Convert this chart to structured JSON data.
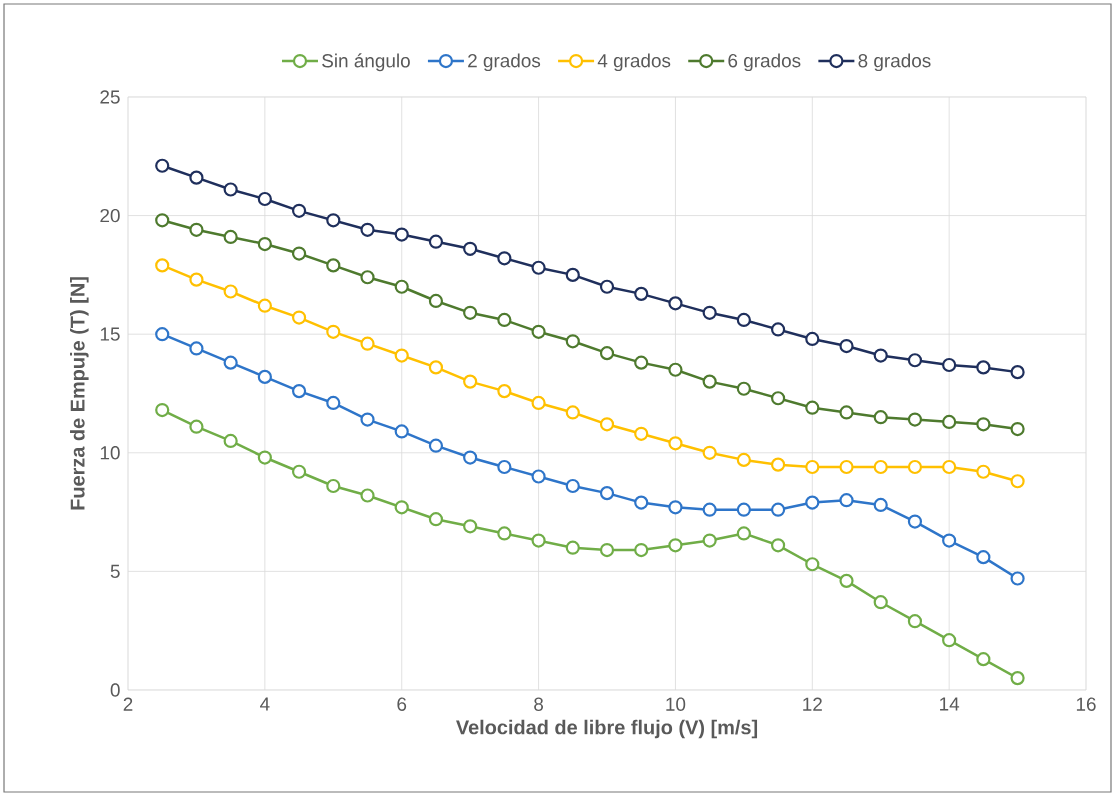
{
  "chart_data": {
    "type": "line",
    "xlabel": "Velocidad de libre flujo (V) [m/s]",
    "ylabel": "Fuerza de Empuje (T)  [N]",
    "x": [
      2.5,
      3,
      3.5,
      4,
      4.5,
      5,
      5.5,
      6,
      6.5,
      7,
      7.5,
      8,
      8.5,
      9,
      9.5,
      10,
      10.5,
      11,
      11.5,
      12,
      12.5,
      13,
      13.5,
      14,
      14.5,
      15
    ],
    "series": [
      {
        "name": "Sin ángulo",
        "color": "#70ad47",
        "values": [
          11.8,
          11.1,
          10.5,
          9.8,
          9.2,
          8.6,
          8.2,
          7.7,
          7.2,
          6.9,
          6.6,
          6.3,
          6.0,
          5.9,
          5.9,
          6.1,
          6.3,
          6.6,
          6.1,
          5.3,
          4.6,
          3.7,
          2.9,
          2.1,
          1.3,
          0.5
        ]
      },
      {
        "name": "2 grados",
        "color": "#2e75c9",
        "values": [
          15.0,
          14.4,
          13.8,
          13.2,
          12.6,
          12.1,
          11.4,
          10.9,
          10.3,
          9.8,
          9.4,
          9.0,
          8.6,
          8.3,
          7.9,
          7.7,
          7.6,
          7.6,
          7.6,
          7.9,
          8.0,
          7.8,
          7.1,
          6.3,
          5.6,
          4.7
        ]
      },
      {
        "name": "4 grados",
        "color": "#ffc000",
        "values": [
          17.9,
          17.3,
          16.8,
          16.2,
          15.7,
          15.1,
          14.6,
          14.1,
          13.6,
          13.0,
          12.6,
          12.1,
          11.7,
          11.2,
          10.8,
          10.4,
          10.0,
          9.7,
          9.5,
          9.4,
          9.4,
          9.4,
          9.4,
          9.4,
          9.2,
          8.8
        ]
      },
      {
        "name": "6 grados",
        "color": "#4e7a2e",
        "values": [
          19.8,
          19.4,
          19.1,
          18.8,
          18.4,
          17.9,
          17.4,
          17.0,
          16.4,
          15.9,
          15.6,
          15.1,
          14.7,
          14.2,
          13.8,
          13.5,
          13.0,
          12.7,
          12.3,
          11.9,
          11.7,
          11.5,
          11.4,
          11.3,
          11.2,
          11.0
        ]
      },
      {
        "name": "8 grados",
        "color": "#1f2f5c",
        "values": [
          22.1,
          21.6,
          21.1,
          20.7,
          20.2,
          19.8,
          19.4,
          19.2,
          18.9,
          18.6,
          18.2,
          17.8,
          17.5,
          17.0,
          16.7,
          16.3,
          15.9,
          15.6,
          15.2,
          14.8,
          14.5,
          14.1,
          13.9,
          13.7,
          13.6,
          13.4
        ]
      }
    ],
    "xlim": [
      2,
      16
    ],
    "xticks": [
      2,
      4,
      6,
      8,
      10,
      12,
      14,
      16
    ],
    "ylim": [
      0,
      25
    ],
    "yticks": [
      0,
      5,
      10,
      15,
      20,
      25
    ],
    "grid": true,
    "legend": "top",
    "marker": "circle",
    "line_style": "solid"
  }
}
